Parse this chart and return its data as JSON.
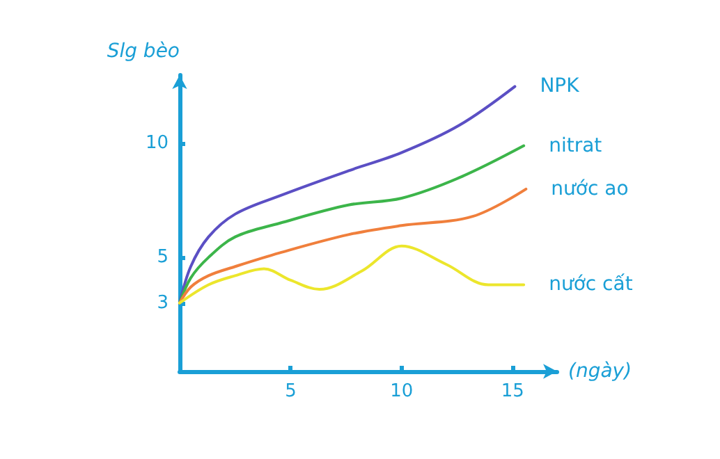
{
  "chart_data": {
    "type": "line",
    "xlabel": "(ngày)",
    "ylabel": "Slg bèo",
    "xlim": [
      0,
      17
    ],
    "xticks": [
      5,
      10,
      15
    ],
    "ylim": [
      0,
      13
    ],
    "yticks": [
      3,
      5,
      10
    ],
    "grid": false,
    "legend": false,
    "marker": "none",
    "line_style": "solid",
    "series": [
      {
        "name": "NPK",
        "color": "#5b4fc4",
        "x": [
          0,
          0.5,
          1.3,
          2.5,
          4.5,
          7.6,
          10,
          12.6,
          15.1
        ],
        "values": [
          3,
          4.6,
          5.9,
          6.9,
          7.7,
          8.8,
          9.6,
          10.8,
          12.5
        ]
      },
      {
        "name": "nitrat",
        "color": "#3cb54a",
        "x": [
          0,
          0.5,
          1.3,
          2.5,
          4.5,
          7.6,
          10,
          12.6,
          15.5
        ],
        "values": [
          3,
          4.1,
          5,
          5.9,
          6.5,
          7.3,
          7.6,
          8.5,
          9.9
        ]
      },
      {
        "name": "nước ao",
        "color": "#f07f3c",
        "x": [
          0,
          0.5,
          1.3,
          2.5,
          4.5,
          7.6,
          10,
          13.2,
          15.6
        ],
        "values": [
          3,
          3.7,
          4.2,
          4.6,
          5.2,
          6,
          6.4,
          6.8,
          8
        ]
      },
      {
        "name": "nước cất",
        "color": "#ece62c",
        "x": [
          0,
          1.3,
          2.5,
          3.8,
          5,
          6.3,
          8.2,
          10,
          12,
          13.9,
          15.5
        ],
        "values": [
          3,
          3.8,
          4.2,
          4.5,
          4,
          3.6,
          4.4,
          5.5,
          4.7,
          3.8,
          3.8
        ]
      }
    ]
  }
}
